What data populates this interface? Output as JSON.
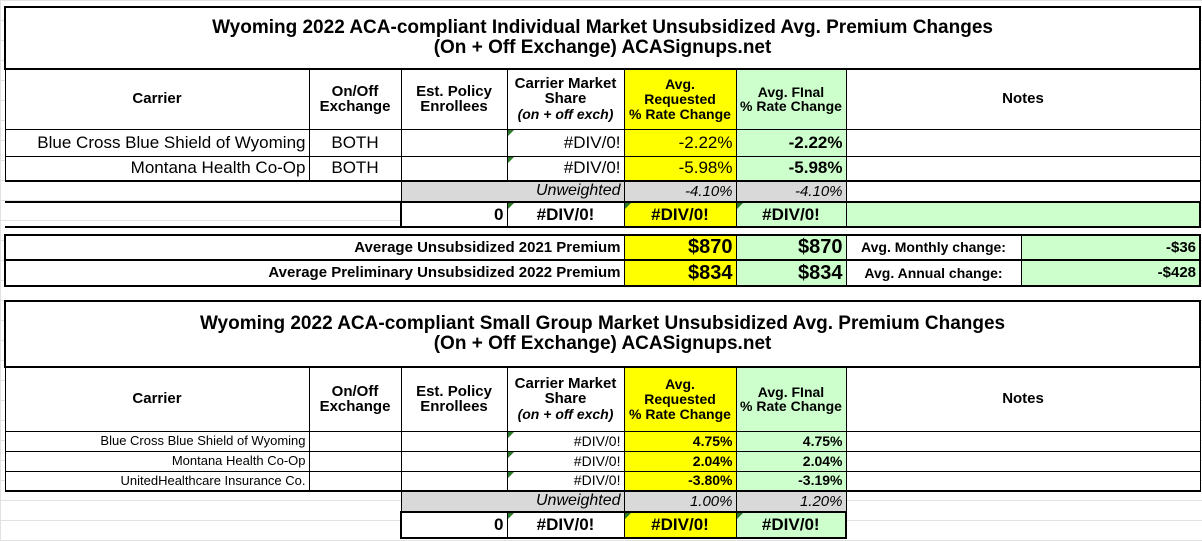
{
  "individual": {
    "title_line1": "Wyoming 2022 ACA-compliant Individual Market Unsubsidized Avg. Premium Changes",
    "title_line2": "(On + Off Exchange) ACASignups.net",
    "headers": {
      "carrier": "Carrier",
      "exchange_1": "On/Off",
      "exchange_2": "Exchange",
      "enrollees_1": "Est. Policy",
      "enrollees_2": "Enrollees",
      "share_1": "Carrier Market",
      "share_2": "Share",
      "share_3": "(on + off exch)",
      "requested_1": "Avg.",
      "requested_2": "Requested",
      "requested_3": "% Rate Change",
      "final_1": "Avg. FInal",
      "final_2": "% Rate Change",
      "notes": "Notes"
    },
    "rows": [
      {
        "carrier": "Blue Cross Blue Shield of Wyoming",
        "exchange": "BOTH",
        "enrollees": "",
        "share": "#DIV/0!",
        "requested": "-2.22%",
        "final": "-2.22%",
        "notes": ""
      },
      {
        "carrier": "Montana Health Co-Op",
        "exchange": "BOTH",
        "enrollees": "",
        "share": "#DIV/0!",
        "requested": "-5.98%",
        "final": "-5.98%",
        "notes": ""
      }
    ],
    "unweighted": {
      "label": "Unweighted",
      "requested": "-4.10%",
      "final": "-4.10%"
    },
    "total": {
      "enrollees": "0",
      "share": "#DIV/0!",
      "requested": "#DIV/0!",
      "final": "#DIV/0!"
    },
    "premiums": [
      {
        "label": "Average Unsubsidized 2021 Premium",
        "requested": "$870",
        "final": "$870",
        "change_label": "Avg. Monthly change:",
        "change_value": "-$36"
      },
      {
        "label": "Average Preliminary Unsubsidized 2022 Premium",
        "requested": "$834",
        "final": "$834",
        "change_label": "Avg. Annual change:",
        "change_value": "-$428"
      }
    ]
  },
  "small_group": {
    "title_line1": "Wyoming 2022 ACA-compliant Small Group Market Unsubsidized Avg. Premium Changes",
    "title_line2": "(On + Off Exchange) ACASignups.net",
    "headers": {
      "carrier": "Carrier",
      "exchange_1": "On/Off",
      "exchange_2": "Exchange",
      "enrollees_1": "Est. Policy",
      "enrollees_2": "Enrollees",
      "share_1": "Carrier Market",
      "share_2": "Share",
      "share_3": "(on + off exch)",
      "requested_1": "Avg.",
      "requested_2": "Requested",
      "requested_3": "% Rate Change",
      "final_1": "Avg. FInal",
      "final_2": "% Rate Change",
      "notes": "Notes"
    },
    "rows": [
      {
        "carrier": "Blue Cross Blue Shield of Wyoming",
        "exchange": "",
        "enrollees": "",
        "share": "#DIV/0!",
        "requested": "4.75%",
        "final": "4.75%",
        "notes": ""
      },
      {
        "carrier": "Montana Health Co-Op",
        "exchange": "",
        "enrollees": "",
        "share": "#DIV/0!",
        "requested": "2.04%",
        "final": "2.04%",
        "notes": ""
      },
      {
        "carrier": "UnitedHealthcare Insurance Co.",
        "exchange": "",
        "enrollees": "",
        "share": "#DIV/0!",
        "requested": "-3.80%",
        "final": "-3.19%",
        "notes": ""
      }
    ],
    "unweighted": {
      "label": "Unweighted",
      "requested": "1.00%",
      "final": "1.20%"
    },
    "total": {
      "enrollees": "0",
      "share": "#DIV/0!",
      "requested": "#DIV/0!",
      "final": "#DIV/0!"
    }
  },
  "colors": {
    "requested": "#ffff00",
    "final": "#ccffcc",
    "unweighted": "#d9d9d9"
  }
}
